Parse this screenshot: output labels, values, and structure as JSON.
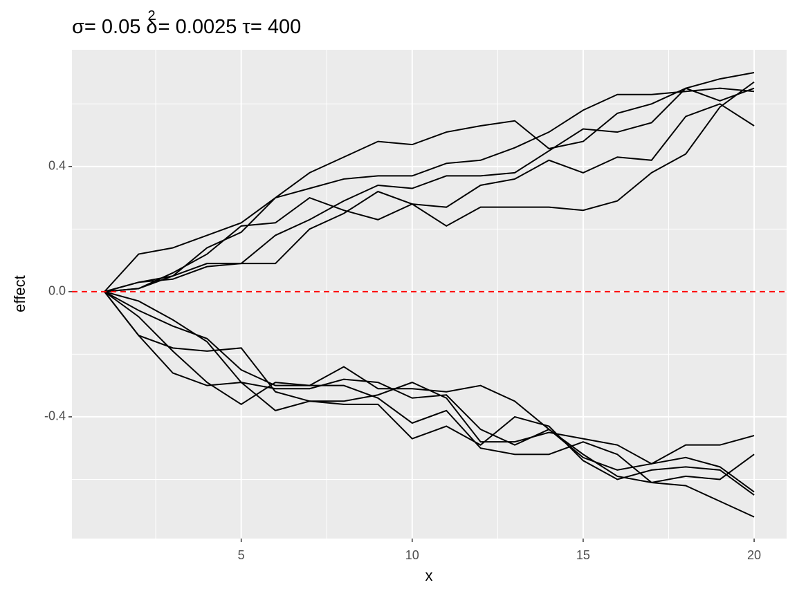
{
  "chart_data": {
    "type": "line",
    "title": [
      "σ= 0.05 δ",
      "2",
      "= 0.0025 τ= 400"
    ],
    "x_label": "x",
    "y_label": "effect",
    "x": [
      1,
      2,
      3,
      4,
      5,
      6,
      7,
      8,
      9,
      10,
      11,
      12,
      13,
      14,
      15,
      16,
      17,
      18,
      19,
      20
    ],
    "series": [
      {
        "color": "#000000",
        "values": [
          0,
          0.12,
          0.14,
          0.18,
          0.22,
          0.3,
          0.38,
          0.43,
          0.48,
          0.47,
          0.51,
          0.53,
          0.546,
          0.457,
          0.48,
          0.57,
          0.6,
          0.65,
          0.68,
          0.7
        ]
      },
      {
        "color": "#000000",
        "values": [
          0,
          0.03,
          0.05,
          0.14,
          0.19,
          0.3,
          0.33,
          0.36,
          0.37,
          0.37,
          0.41,
          0.42,
          0.46,
          0.51,
          0.58,
          0.63,
          0.63,
          0.64,
          0.65,
          0.64
        ]
      },
      {
        "color": "#000000",
        "values": [
          0,
          0.01,
          0.06,
          0.12,
          0.21,
          0.22,
          0.3,
          0.26,
          0.23,
          0.28,
          0.27,
          0.34,
          0.36,
          0.42,
          0.38,
          0.43,
          0.42,
          0.56,
          0.6,
          0.53
        ]
      },
      {
        "color": "#000000",
        "values": [
          0,
          0.01,
          0.05,
          0.09,
          0.09,
          0.18,
          0.23,
          0.29,
          0.34,
          0.33,
          0.37,
          0.37,
          0.38,
          0.45,
          0.52,
          0.51,
          0.54,
          0.65,
          0.61,
          0.65
        ]
      },
      {
        "color": "#000000",
        "values": [
          0,
          0.03,
          0.04,
          0.08,
          0.09,
          0.09,
          0.2,
          0.25,
          0.32,
          0.28,
          0.21,
          0.27,
          0.27,
          0.27,
          0.26,
          0.29,
          0.38,
          0.44,
          0.59,
          0.67
        ]
      },
      {
        "color": "#000000",
        "values": [
          0,
          -0.14,
          -0.18,
          -0.19,
          -0.18,
          -0.32,
          -0.35,
          -0.35,
          -0.33,
          -0.29,
          -0.34,
          -0.48,
          -0.48,
          -0.45,
          -0.47,
          -0.49,
          -0.55,
          -0.49,
          -0.49,
          -0.46
        ]
      },
      {
        "color": "#000000",
        "values": [
          0,
          -0.06,
          -0.11,
          -0.15,
          -0.25,
          -0.3,
          -0.3,
          -0.24,
          -0.31,
          -0.31,
          -0.32,
          -0.3,
          -0.35,
          -0.44,
          -0.52,
          -0.59,
          -0.61,
          -0.59,
          -0.6,
          -0.52
        ]
      },
      {
        "color": "#000000",
        "values": [
          0,
          -0.03,
          -0.09,
          -0.16,
          -0.29,
          -0.31,
          -0.31,
          -0.28,
          -0.29,
          -0.34,
          -0.33,
          -0.44,
          -0.49,
          -0.44,
          -0.53,
          -0.57,
          -0.55,
          -0.53,
          -0.56,
          -0.64
        ]
      },
      {
        "color": "#000000",
        "values": [
          0,
          -0.08,
          -0.19,
          -0.29,
          -0.36,
          -0.29,
          -0.3,
          -0.3,
          -0.34,
          -0.42,
          -0.38,
          -0.5,
          -0.52,
          -0.52,
          -0.48,
          -0.52,
          -0.61,
          -0.62,
          -0.67,
          -0.72
        ]
      },
      {
        "color": "#000000",
        "values": [
          0,
          -0.14,
          -0.26,
          -0.3,
          -0.29,
          -0.38,
          -0.35,
          -0.36,
          -0.36,
          -0.47,
          -0.43,
          -0.49,
          -0.4,
          -0.43,
          -0.54,
          -0.6,
          -0.57,
          -0.56,
          -0.57,
          -0.65
        ]
      }
    ],
    "hline": {
      "value": 0,
      "color": "#ff0000"
    },
    "xlim": [
      0.05,
      20.95
    ],
    "ylim": [
      -0.789,
      0.773
    ],
    "xticks": [
      5,
      10,
      15,
      20
    ],
    "yticks": [
      -0.4,
      {
        "value": 0,
        "label": "0.0"
      },
      0.4
    ],
    "minor_xticks": [
      2.5,
      7.5,
      12.5,
      17.5
    ],
    "minor_yticks": [
      -0.6,
      -0.2,
      0.2,
      0.6
    ],
    "grid": true
  }
}
